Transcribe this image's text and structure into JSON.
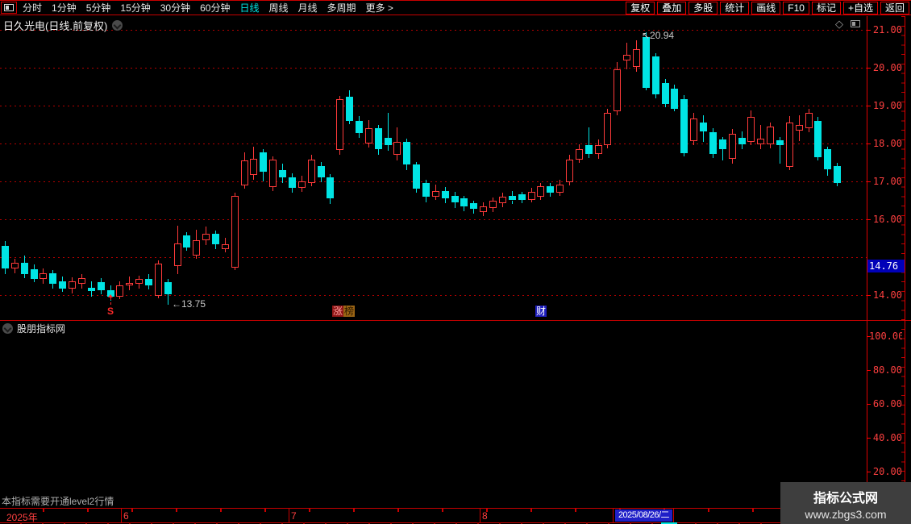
{
  "toolbar": {
    "left_items": [
      {
        "label": "分时",
        "active": false
      },
      {
        "label": "1分钟",
        "active": false
      },
      {
        "label": "5分钟",
        "active": false
      },
      {
        "label": "15分钟",
        "active": false
      },
      {
        "label": "30分钟",
        "active": false
      },
      {
        "label": "60分钟",
        "active": false
      },
      {
        "label": "日线",
        "active": true
      },
      {
        "label": "周线",
        "active": false
      },
      {
        "label": "月线",
        "active": false
      },
      {
        "label": "多周期",
        "active": false
      },
      {
        "label": "更多 >",
        "active": false
      }
    ],
    "right_buttons": [
      "复权",
      "叠加",
      "多股",
      "统计",
      "画线",
      "F10",
      "标记",
      "+自选",
      "返回"
    ]
  },
  "main_chart": {
    "title": "日久光电(日线.前复权)",
    "price_axis": {
      "labels": [
        "21.00",
        "20.00",
        "19.00",
        "18.00",
        "17.00",
        "16.00",
        "14.00"
      ],
      "values": [
        21,
        20,
        19,
        18,
        17,
        16,
        14
      ],
      "grid_values": [
        21,
        20,
        19,
        18,
        17,
        16,
        15,
        14
      ],
      "tag": {
        "text": "14.76",
        "value": 14.76
      }
    }
  },
  "chart_data": {
    "type": "candlestick",
    "title": "日久光电 日线 前复权",
    "ylim": [
      13.6,
      21.2
    ],
    "y_gridlines": [
      14,
      15,
      16,
      17,
      18,
      19,
      20,
      21
    ],
    "n": 88,
    "x_start": 6,
    "x_step": 11.864,
    "up_color": "#ff3a3a",
    "down_color": "#00e4e4",
    "high_label": "20.94",
    "low_label": "13.75",
    "candles": [
      [
        15.3,
        15.42,
        14.55,
        14.7
      ],
      [
        14.7,
        14.96,
        14.58,
        14.86
      ],
      [
        14.86,
        15.05,
        14.45,
        14.56
      ],
      [
        14.68,
        14.8,
        14.33,
        14.42
      ],
      [
        14.42,
        14.7,
        14.3,
        14.58
      ],
      [
        14.58,
        14.65,
        14.18,
        14.3
      ],
      [
        14.36,
        14.5,
        14.08,
        14.18
      ],
      [
        14.18,
        14.46,
        14.05,
        14.36
      ],
      [
        14.3,
        14.56,
        14.18,
        14.45
      ],
      [
        14.2,
        14.36,
        13.96,
        14.1
      ],
      [
        14.35,
        14.45,
        14.02,
        14.12
      ],
      [
        14.12,
        14.26,
        13.86,
        13.96
      ],
      [
        13.96,
        14.36,
        13.9,
        14.26
      ],
      [
        14.26,
        14.48,
        14.12,
        14.32
      ],
      [
        14.3,
        14.52,
        14.18,
        14.42
      ],
      [
        14.42,
        14.56,
        14.15,
        14.25
      ],
      [
        13.98,
        14.92,
        13.92,
        14.83
      ],
      [
        14.34,
        14.42,
        13.75,
        14.02
      ],
      [
        14.77,
        15.83,
        14.55,
        15.36
      ],
      [
        15.57,
        15.65,
        15.18,
        15.26
      ],
      [
        15.05,
        15.72,
        14.95,
        15.45
      ],
      [
        15.45,
        15.8,
        15.32,
        15.62
      ],
      [
        15.62,
        15.7,
        15.22,
        15.33
      ],
      [
        15.22,
        15.52,
        15.12,
        15.33
      ],
      [
        14.72,
        16.7,
        14.65,
        16.62
      ],
      [
        16.9,
        17.76,
        16.8,
        17.55
      ],
      [
        17.17,
        17.92,
        17.05,
        17.6
      ],
      [
        17.77,
        17.86,
        17.0,
        17.26
      ],
      [
        16.85,
        17.65,
        16.75,
        17.58
      ],
      [
        17.3,
        17.46,
        16.95,
        17.1
      ],
      [
        17.1,
        17.22,
        16.7,
        16.82
      ],
      [
        16.82,
        17.15,
        16.72,
        17.0
      ],
      [
        16.96,
        17.7,
        16.88,
        17.58
      ],
      [
        17.4,
        17.52,
        16.98,
        17.1
      ],
      [
        17.1,
        17.2,
        16.4,
        16.55
      ],
      [
        17.83,
        19.25,
        17.7,
        19.18
      ],
      [
        19.23,
        19.4,
        18.5,
        18.6
      ],
      [
        18.6,
        18.72,
        18.15,
        18.28
      ],
      [
        18.0,
        18.62,
        17.9,
        18.4
      ],
      [
        18.4,
        18.5,
        17.7,
        17.85
      ],
      [
        18.15,
        18.8,
        17.8,
        17.95
      ],
      [
        17.7,
        18.42,
        17.55,
        18.05
      ],
      [
        18.05,
        18.12,
        17.3,
        17.45
      ],
      [
        17.45,
        17.52,
        16.7,
        16.8
      ],
      [
        16.95,
        17.05,
        16.45,
        16.6
      ],
      [
        16.6,
        16.92,
        16.5,
        16.75
      ],
      [
        16.75,
        16.85,
        16.42,
        16.55
      ],
      [
        16.62,
        16.72,
        16.3,
        16.45
      ],
      [
        16.55,
        16.62,
        16.22,
        16.35
      ],
      [
        16.42,
        16.5,
        16.15,
        16.28
      ],
      [
        16.2,
        16.45,
        16.08,
        16.35
      ],
      [
        16.3,
        16.58,
        16.2,
        16.48
      ],
      [
        16.42,
        16.7,
        16.32,
        16.6
      ],
      [
        16.62,
        16.75,
        16.4,
        16.5
      ],
      [
        16.65,
        16.72,
        16.42,
        16.52
      ],
      [
        16.52,
        16.82,
        16.45,
        16.72
      ],
      [
        16.6,
        16.95,
        16.52,
        16.88
      ],
      [
        16.88,
        16.95,
        16.6,
        16.7
      ],
      [
        16.7,
        17.05,
        16.62,
        16.92
      ],
      [
        16.97,
        17.7,
        16.9,
        17.58
      ],
      [
        17.58,
        17.98,
        17.48,
        17.85
      ],
      [
        17.95,
        18.42,
        17.62,
        17.72
      ],
      [
        17.72,
        18.1,
        17.6,
        17.95
      ],
      [
        17.95,
        18.92,
        17.88,
        18.8
      ],
      [
        18.85,
        20.15,
        18.75,
        19.95
      ],
      [
        20.2,
        20.66,
        19.95,
        20.35
      ],
      [
        20.02,
        20.72,
        19.9,
        20.48
      ],
      [
        20.8,
        20.94,
        19.4,
        19.46
      ],
      [
        20.3,
        20.38,
        19.2,
        19.3
      ],
      [
        19.6,
        19.7,
        18.95,
        19.05
      ],
      [
        19.45,
        19.55,
        18.85,
        18.92
      ],
      [
        19.17,
        19.27,
        17.65,
        17.74
      ],
      [
        18.06,
        18.8,
        17.95,
        18.66
      ],
      [
        18.55,
        18.75,
        18.05,
        18.32
      ],
      [
        18.3,
        18.4,
        17.62,
        17.72
      ],
      [
        18.1,
        18.18,
        17.55,
        17.86
      ],
      [
        17.6,
        18.38,
        17.47,
        18.25
      ],
      [
        18.15,
        18.32,
        17.85,
        17.98
      ],
      [
        18.05,
        18.87,
        17.95,
        18.7
      ],
      [
        17.97,
        18.5,
        17.85,
        18.12
      ],
      [
        17.97,
        18.56,
        17.88,
        18.45
      ],
      [
        18.08,
        18.16,
        17.47,
        17.96
      ],
      [
        17.38,
        18.72,
        17.3,
        18.55
      ],
      [
        18.35,
        18.74,
        18.06,
        18.48
      ],
      [
        18.4,
        18.92,
        18.3,
        18.8
      ],
      [
        18.6,
        18.7,
        17.55,
        17.64
      ],
      [
        17.85,
        17.92,
        17.15,
        17.32
      ],
      [
        17.4,
        17.48,
        16.88,
        16.96
      ]
    ],
    "markers": {
      "sell": {
        "label": "S",
        "candle": 11
      },
      "low": {
        "text": "←13.75",
        "candle": 17
      },
      "high": {
        "text": "↖20.94",
        "candle": 67
      },
      "badges": [
        {
          "x": 412,
          "chars": [
            {
              "t": "涨",
              "bg": "#8e1515",
              "fg": "#ff9f9f"
            },
            {
              "t": "榜",
              "bg": "#9a6414",
              "fg": "#2e1a00"
            }
          ]
        },
        {
          "x": 664,
          "chars": [
            {
              "t": "财",
              "bg": "#1f1fbe",
              "fg": "#ffffff"
            }
          ]
        }
      ]
    }
  },
  "sub_chart": {
    "title": "股朋指标网",
    "axis": {
      "labels": [
        "100.00",
        "80.00",
        "60.00",
        "40.00",
        "20.00"
      ],
      "values": [
        100,
        80,
        60,
        40,
        20
      ]
    }
  },
  "status_bar": {
    "notice": "本指标需要开通level2行情"
  },
  "date_axis": {
    "year": "2025年",
    "months": [
      {
        "label": "6",
        "x": 153
      },
      {
        "label": "7",
        "x": 361
      },
      {
        "label": "8",
        "x": 598
      }
    ],
    "dividers": [
      150,
      358,
      595,
      760,
      835
    ],
    "selected": "2025/08/26/二"
  },
  "watermark": {
    "line1": "指标公式网",
    "line2": "www.zbgs3.com"
  },
  "colors": {
    "up": "#ff3a3a",
    "down": "#00e4e4",
    "axis_text": "#ff4040",
    "grid": "#b40000",
    "active_tab": "#00e7e7",
    "tag_bg": "#0000b8",
    "sel_date_bg": "#2020c8"
  }
}
